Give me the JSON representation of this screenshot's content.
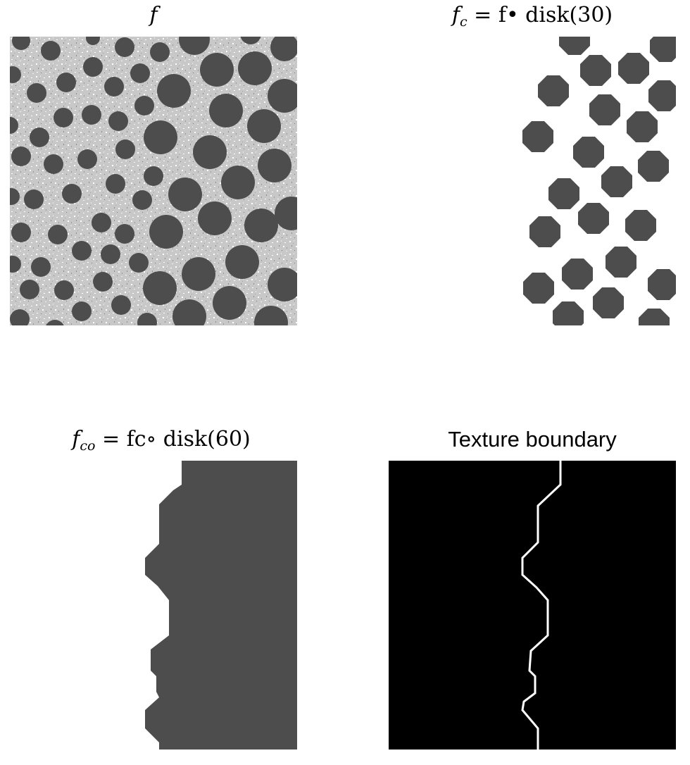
{
  "panels": [
    {
      "id": "f",
      "title_symbol": "f",
      "title_sub": "",
      "title_rest": ""
    },
    {
      "id": "fc",
      "title_symbol": "f",
      "title_sub": "c",
      "title_rest": " = f• disk(30)"
    },
    {
      "id": "fco",
      "title_symbol": "f",
      "title_sub": "co",
      "title_rest": " = fc∘ disk(60)"
    },
    {
      "id": "boundary",
      "title_text": "Texture boundary"
    }
  ],
  "colors": {
    "background": "#ffffff",
    "blob": "#4d4d4d",
    "texture": "#c8c8c8",
    "boundary_bg": "#000000",
    "boundary_line": "#ffffff"
  }
}
